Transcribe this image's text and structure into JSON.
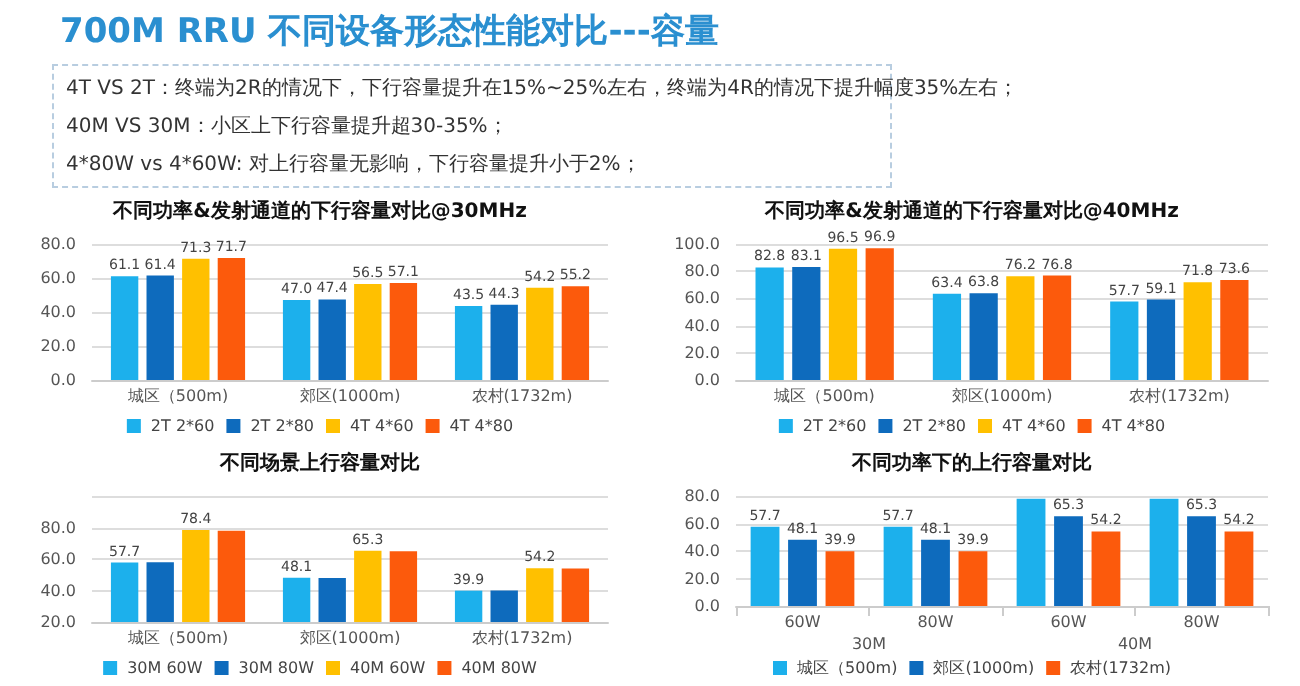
{
  "chart_data": [
    {
      "type": "other",
      "title": "700M RRU 不同设备形态性能对比---容量",
      "annotations": [
        "4T VS 2T：终端为2R的情况下，下行容量提升在15%~25%左右，终端为4R的情况下提升幅度35%左右；",
        "40M VS 30M：小区上下行容量提升超30-35%；",
        "4*80W vs 4*60W: 对上行容量无影响，下行容量提升小于2%；"
      ]
    },
    {
      "type": "bar",
      "title": "不同功率&发射通道的下行容量对比@30MHz",
      "categories": [
        "城区（500m)",
        "郊区(1000m)",
        "农村(1732m)"
      ],
      "ylim": [
        0,
        80
      ],
      "yticks": [
        {
          "value": 0,
          "label": "0.0"
        },
        {
          "value": 20,
          "label": "20.0"
        },
        {
          "value": 40,
          "label": "40.0"
        },
        {
          "value": 60,
          "label": "60.0"
        },
        {
          "value": 80,
          "label": "80.0"
        }
      ],
      "grid": "y",
      "legend": "bottom",
      "series": [
        {
          "name": "2T 2*60",
          "color": "#1cb0ec",
          "values": [
            61.1,
            47.0,
            43.5
          ],
          "value_labels": [
            "61.1",
            "47.0",
            "43.5"
          ]
        },
        {
          "name": "2T 2*80",
          "color": "#0e6bbd",
          "values": [
            61.4,
            47.4,
            44.3
          ],
          "value_labels": [
            "61.4",
            "47.4",
            "44.3"
          ]
        },
        {
          "name": "4T 4*60",
          "color": "#ffc000",
          "values": [
            71.3,
            56.5,
            54.2
          ],
          "value_labels": [
            "71.3",
            "56.5",
            "54.2"
          ]
        },
        {
          "name": "4T 4*80",
          "color": "#fc5a0c",
          "values": [
            71.7,
            57.1,
            55.2
          ],
          "value_labels": [
            "71.7",
            "57.1",
            "55.2"
          ]
        }
      ]
    },
    {
      "type": "bar",
      "title": "不同功率&发射通道的下行容量对比@40MHz",
      "categories": [
        "城区（500m)",
        "郊区(1000m)",
        "农村(1732m)"
      ],
      "ylim": [
        0,
        100
      ],
      "yticks": [
        {
          "value": 0,
          "label": "0.0"
        },
        {
          "value": 20,
          "label": "20.0"
        },
        {
          "value": 40,
          "label": "40.0"
        },
        {
          "value": 60,
          "label": "60.0"
        },
        {
          "value": 80,
          "label": "80.0"
        },
        {
          "value": 100,
          "label": "100.0"
        }
      ],
      "grid": "y",
      "legend": "bottom",
      "series": [
        {
          "name": "2T 2*60",
          "color": "#1cb0ec",
          "values": [
            82.8,
            63.4,
            57.7
          ],
          "value_labels": [
            "82.8",
            "63.4",
            "57.7"
          ]
        },
        {
          "name": "2T 2*80",
          "color": "#0e6bbd",
          "values": [
            83.1,
            63.8,
            59.1
          ],
          "value_labels": [
            "83.1",
            "63.8",
            "59.1"
          ]
        },
        {
          "name": "4T 4*60",
          "color": "#ffc000",
          "values": [
            96.5,
            76.2,
            71.8
          ],
          "value_labels": [
            "96.5",
            "76.2",
            "71.8"
          ]
        },
        {
          "name": "4T 4*80",
          "color": "#fc5a0c",
          "values": [
            96.9,
            76.8,
            73.6
          ],
          "value_labels": [
            "96.9",
            "76.8",
            "73.6"
          ]
        }
      ]
    },
    {
      "type": "bar",
      "title": "不同场景上行容量对比",
      "categories": [
        "城区（500m)",
        "郊区(1000m)",
        "农村(1732m)"
      ],
      "ylim": [
        20,
        100
      ],
      "yticks": [
        {
          "value": 20,
          "label": "20.0"
        },
        {
          "value": 40,
          "label": "40.0"
        },
        {
          "value": 60,
          "label": "60.0"
        },
        {
          "value": 80,
          "label": "80.0"
        },
        {
          "value": 100,
          "label": null
        }
      ],
      "grid": "y",
      "legend": "bottom",
      "series": [
        {
          "name": "30M 60W",
          "color": "#1cb0ec",
          "values": [
            57.7,
            48.1,
            39.9
          ],
          "value_labels": [
            "57.7",
            "48.1",
            "39.9"
          ]
        },
        {
          "name": "30M 80W",
          "color": "#0e6bbd",
          "values": [
            58,
            48,
            40
          ],
          "value_labels": [
            null,
            null,
            null
          ]
        },
        {
          "name": "40M 60W",
          "color": "#ffc000",
          "values": [
            78.4,
            65.3,
            54.2
          ],
          "value_labels": [
            "78.4",
            "65.3",
            "54.2"
          ]
        },
        {
          "name": "40M 80W",
          "color": "#fc5a0c",
          "values": [
            78,
            65,
            54
          ],
          "value_labels": [
            null,
            null,
            null
          ]
        }
      ]
    },
    {
      "type": "bar",
      "title": "不同功率下的上行容量对比",
      "categories": [
        "60W",
        "80W",
        "60W",
        "80W"
      ],
      "annotations": [
        "30M",
        "40M"
      ],
      "ylim": [
        0,
        80
      ],
      "yticks": [
        {
          "value": 0,
          "label": "0.0"
        },
        {
          "value": 20,
          "label": "20.0"
        },
        {
          "value": 40,
          "label": "40.0"
        },
        {
          "value": 60,
          "label": "60.0"
        },
        {
          "value": 80,
          "label": "80.0"
        }
      ],
      "grid": "y",
      "legend": "bottom",
      "series": [
        {
          "name": "城区（500m)",
          "color": "#1cb0ec",
          "values": [
            57.7,
            57.7,
            78,
            78
          ],
          "value_labels": [
            "57.7",
            "57.7",
            null,
            null
          ]
        },
        {
          "name": "郊区(1000m)",
          "color": "#0e6bbd",
          "values": [
            48.1,
            48.1,
            65.3,
            65.3
          ],
          "value_labels": [
            "48.1",
            "48.1",
            "65.3",
            "65.3"
          ]
        },
        {
          "name": "农村(1732m)",
          "color": "#fc5a0c",
          "values": [
            39.9,
            39.9,
            54.2,
            54.2
          ],
          "value_labels": [
            "39.9",
            "39.9",
            "54.2",
            "54.2"
          ]
        }
      ]
    }
  ]
}
